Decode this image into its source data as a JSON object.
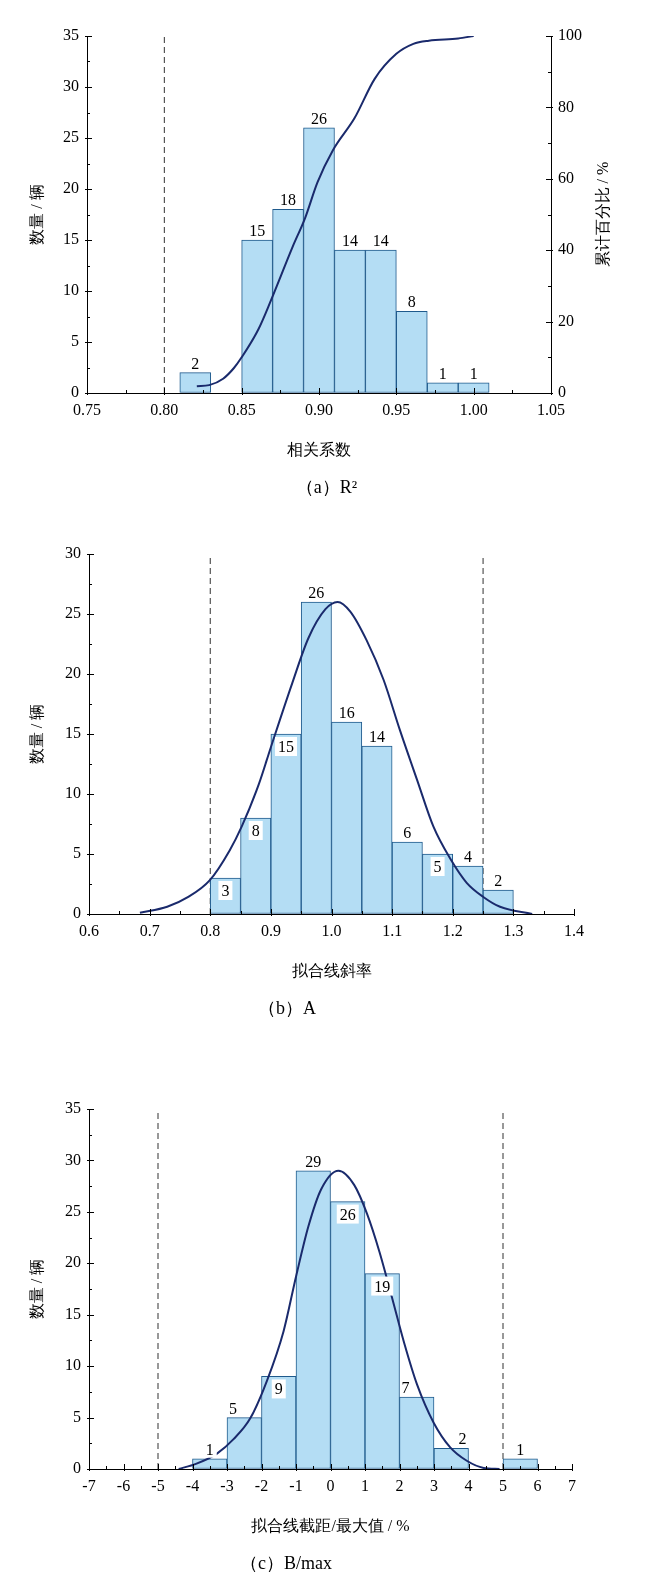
{
  "chart_data": [
    {
      "type": "histogram",
      "title": "（a）R²",
      "xlabel": "相关系数",
      "ylabel": "数量 / 辆",
      "y2label": "累计百分比 / %",
      "bins": [
        0.81,
        0.83,
        0.85,
        0.87,
        0.89,
        0.91,
        0.93,
        0.95,
        0.97,
        0.99,
        1.01
      ],
      "series": [
        {
          "color": "#b4ddf4",
          "values": [
            2,
            0,
            15,
            18,
            26,
            14,
            14,
            8,
            1,
            1
          ],
          "value_labels": [
            "2",
            null,
            "15",
            "18",
            "26",
            "14",
            "14",
            "8",
            "1",
            "1"
          ]
        },
        {
          "type": "line",
          "axis": "y2",
          "color": "#1a2a6c",
          "x": [
            0.821,
            0.829,
            0.838,
            0.845,
            0.85,
            0.861,
            0.869,
            0.883,
            0.891,
            0.899,
            0.909,
            0.923,
            0.936,
            0.95,
            0.961,
            0.971,
            0.99,
            1.0
          ],
          "values": [
            1.9,
            2.2,
            4,
            7,
            10,
            18,
            26,
            41,
            49,
            59,
            68,
            77,
            88,
            95,
            97.8,
            98.7,
            99.3,
            100
          ]
        }
      ],
      "xlim": [
        0.75,
        1.05
      ],
      "xticks": [
        0.75,
        {
          "value": 0.775,
          "label": null
        },
        {
          "value": 0.8,
          "label": "0.80"
        },
        {
          "value": 0.825,
          "label": null
        },
        0.85,
        {
          "value": 0.875,
          "label": null
        },
        {
          "value": 0.9,
          "label": "0.90"
        },
        {
          "value": 0.925,
          "label": null
        },
        0.95,
        {
          "value": 0.975,
          "label": null
        },
        {
          "value": 1,
          "label": "1.00"
        },
        {
          "value": 1.025,
          "label": null
        },
        1.05
      ],
      "ylim": [
        0,
        35
      ],
      "yticks": [
        0,
        {
          "value": 2.5,
          "label": null
        },
        5,
        {
          "value": 7.5,
          "label": null
        },
        10,
        {
          "value": 12.5,
          "label": null
        },
        15,
        {
          "value": 17.5,
          "label": null
        },
        20,
        {
          "value": 22.5,
          "label": null
        },
        25,
        {
          "value": 27.5,
          "label": null
        },
        30,
        {
          "value": 32.5,
          "label": null
        },
        35
      ],
      "y2lim": [
        0,
        100
      ],
      "y2ticks": [
        0,
        {
          "value": 10,
          "label": null
        },
        20,
        {
          "value": 30,
          "label": null
        },
        40,
        {
          "value": 50,
          "label": null
        },
        60,
        {
          "value": 70,
          "label": null
        },
        80,
        {
          "value": 90,
          "label": null
        },
        100
      ],
      "ref_lines": [
        {
          "axis": "x",
          "value": 0.8,
          "color": "#333333",
          "line_style": "dashed"
        }
      ]
    },
    {
      "type": "histogram",
      "title": "（b）A",
      "xlabel": "拟合线斜率",
      "ylabel": "数量 / 辆",
      "bins": [
        0.8,
        0.85,
        0.9,
        0.95,
        1.0,
        1.05,
        1.1,
        1.15,
        1.2,
        1.25,
        1.3
      ],
      "series": [
        {
          "color": "#b4ddf4",
          "values": [
            3,
            8,
            15,
            26,
            16,
            14,
            6,
            5,
            4,
            2
          ],
          "value_labels": [
            "3",
            "8",
            "15",
            "26",
            "16",
            "14",
            "6",
            "5",
            "4",
            "2"
          ]
        },
        {
          "type": "line",
          "color": "#1a2a6c",
          "x": [
            0.684,
            0.729,
            0.763,
            0.799,
            0.832,
            0.852,
            0.88,
            0.9,
            0.935,
            0.962,
            0.99,
            1.01,
            1.031,
            1.058,
            1.086,
            1.113,
            1.141,
            1.168,
            1.196,
            1.223,
            1.251,
            1.278,
            1.331
          ],
          "values": [
            0.1,
            0.6,
            1.4,
            2.8,
            5.3,
            7.3,
            10.8,
            13.9,
            19.2,
            23.0,
            25.4,
            26.0,
            25.2,
            22.8,
            19.5,
            15.3,
            11.2,
            7.3,
            4.6,
            2.6,
            1.4,
            0.6,
            0.0
          ]
        }
      ],
      "xlim": [
        0.6,
        1.4
      ],
      "xticks": [
        0.6,
        {
          "value": 0.65,
          "label": null
        },
        0.7,
        {
          "value": 0.75,
          "label": null
        },
        0.8,
        {
          "value": 0.85,
          "label": null
        },
        0.9,
        {
          "value": 0.95,
          "label": null
        },
        {
          "value": 1,
          "label": "1.0"
        },
        {
          "value": 1.05,
          "label": null
        },
        1.1,
        {
          "value": 1.15,
          "label": null
        },
        1.2,
        {
          "value": 1.25,
          "label": null
        },
        1.3,
        {
          "value": 1.35,
          "label": null
        },
        1.4
      ],
      "ylim": [
        0,
        30
      ],
      "yticks": [
        0,
        {
          "value": 2.5,
          "label": null
        },
        5,
        {
          "value": 7.5,
          "label": null
        },
        10,
        {
          "value": 12.5,
          "label": null
        },
        15,
        {
          "value": 17.5,
          "label": null
        },
        20,
        {
          "value": 22.5,
          "label": null
        },
        25,
        {
          "value": 27.5,
          "label": null
        },
        30
      ],
      "ref_lines": [
        {
          "axis": "x",
          "value": 0.8,
          "color": "#333333",
          "line_style": "dashed"
        },
        {
          "axis": "x",
          "value": 1.25,
          "color": "#333333",
          "line_style": "dashed"
        }
      ]
    },
    {
      "type": "histogram",
      "title": "（c）B/max",
      "xlabel": "拟合线截距/最大值 / %",
      "ylabel": "数量 / 辆",
      "bins": [
        -4,
        -3,
        -2,
        -1,
        0,
        1,
        2,
        3,
        4,
        5,
        6
      ],
      "series": [
        {
          "color": "#b4ddf4",
          "values": [
            1,
            5,
            9,
            29,
            26,
            19,
            7,
            2,
            0,
            1
          ],
          "value_labels": [
            "1",
            "5",
            "9",
            "29",
            "26",
            "19",
            "7",
            "2",
            null,
            "1"
          ]
        },
        {
          "type": "line",
          "color": "#1a2a6c",
          "x": [
            -4.4,
            -3.9,
            -3.29,
            -2.81,
            -2.33,
            -1.84,
            -1.36,
            -1.0,
            -0.64,
            -0.27,
            0.23,
            0.69,
            1.06,
            1.42,
            1.78,
            2.14,
            2.51,
            2.99,
            3.47,
            3.95,
            4.44,
            4.9
          ],
          "values": [
            0.0,
            0.5,
            1.5,
            2.9,
            4.9,
            8.6,
            13.4,
            18.7,
            23.6,
            27.2,
            29.0,
            27.6,
            24.8,
            21.1,
            16.7,
            12.2,
            8.2,
            4.5,
            2.1,
            0.8,
            0.1,
            0.0
          ]
        }
      ],
      "xlim": [
        -7,
        7
      ],
      "xticks": [
        -7,
        {
          "value": -6.5,
          "label": null
        },
        -6,
        {
          "value": -5.5,
          "label": null
        },
        -5,
        {
          "value": -4.5,
          "label": null
        },
        -4,
        {
          "value": -3.5,
          "label": null
        },
        -3,
        {
          "value": -2.5,
          "label": null
        },
        -2,
        {
          "value": -1.5,
          "label": null
        },
        -1,
        {
          "value": -0.5,
          "label": null
        },
        0,
        {
          "value": 0.5,
          "label": null
        },
        1,
        {
          "value": 1.5,
          "label": null
        },
        2,
        {
          "value": 2.5,
          "label": null
        },
        3,
        {
          "value": 3.5,
          "label": null
        },
        4,
        {
          "value": 4.5,
          "label": null
        },
        5,
        {
          "value": 5.5,
          "label": null
        },
        6,
        {
          "value": 6.5,
          "label": null
        },
        7
      ],
      "ylim": [
        0,
        35
      ],
      "yticks": [
        0,
        {
          "value": 2.5,
          "label": null
        },
        5,
        {
          "value": 7.5,
          "label": null
        },
        10,
        {
          "value": 12.5,
          "label": null
        },
        15,
        {
          "value": 17.5,
          "label": null
        },
        20,
        {
          "value": 22.5,
          "label": null
        },
        25,
        {
          "value": 27.5,
          "label": null
        },
        30,
        {
          "value": 32.5,
          "label": null
        },
        35
      ],
      "ref_lines": [
        {
          "axis": "x",
          "value": -5,
          "color": "#333333",
          "line_style": "dashed"
        },
        {
          "axis": "x",
          "value": 5,
          "color": "#333333",
          "line_style": "dashed"
        }
      ]
    }
  ]
}
